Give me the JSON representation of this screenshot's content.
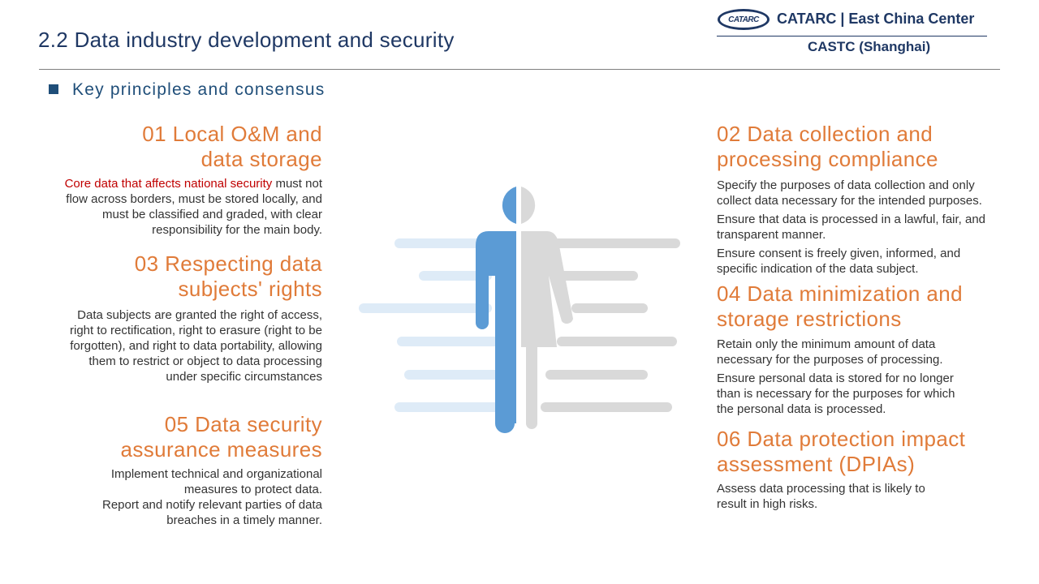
{
  "header": {
    "title": "2.2 Data industry development and security",
    "logo_mark": "CATARC",
    "logo_name": "CATARC | East China Center",
    "logo_sub": "CASTC (Shanghai)"
  },
  "subtitle": "Key principles and consensus",
  "principles": {
    "p01": {
      "title_line1": "01 Local O&M and",
      "title_line2": "data storage",
      "highlight": "Core data that affects national security",
      "text_l1": " must not",
      "text_l2": "flow across borders, must be stored locally, and",
      "text_l3": "must be classified and graded, with clear",
      "text_l4": "responsibility for the main body."
    },
    "p02": {
      "title_line1": "02 Data collection and",
      "title_line2": "processing compliance",
      "para1_l1": "Specify the purposes of data collection and only",
      "para1_l2": "collect data necessary for the intended purposes.",
      "para2_l1": "Ensure that data is processed in a lawful, fair, and",
      "para2_l2": "transparent manner.",
      "para3_l1": "Ensure consent is freely given, informed, and",
      "para3_l2": "specific indication of the data subject."
    },
    "p03": {
      "title_line1": "03 Respecting data",
      "title_line2": "subjects' rights",
      "text_l1": "Data subjects are granted the right of access,",
      "text_l2": "right to rectification, right to erasure (right to be",
      "text_l3": "forgotten), and right to data portability, allowing",
      "text_l4": "them to restrict or object to data processing",
      "text_l5": "under specific circumstances"
    },
    "p04": {
      "title_line1": "04 Data minimization and",
      "title_line2": "storage restrictions",
      "para1_l1": "Retain only the minimum amount of data",
      "para1_l2": "necessary for the purposes of processing.",
      "para2_l1": "Ensure personal data is stored for no longer",
      "para2_l2": "than is necessary for the purposes for which",
      "para2_l3": "the personal data is processed."
    },
    "p05": {
      "title_line1": "05 Data security",
      "title_line2": "assurance measures",
      "para1_l1": "Implement technical and organizational",
      "para1_l2": "measures to protect data.",
      "para2_l1": "Report and notify relevant parties of data",
      "para2_l2": "breaches in a timely manner."
    },
    "p06": {
      "title_line1": "06 Data protection impact",
      "title_line2": "assessment (DPIAs)",
      "text_l1": "Assess data processing that is likely to",
      "text_l2": "result in high risks."
    }
  },
  "colors": {
    "title_navy": "#1f3864",
    "heading_orange": "#e07b39",
    "highlight_red": "#c00000",
    "figure_blue": "#5b9bd5",
    "figure_gray": "#d9d9d9",
    "bar_light_blue": "#deebf7"
  },
  "icons": {
    "figure": "male-female-figure-icon",
    "bullet": "square-bullet-icon"
  }
}
